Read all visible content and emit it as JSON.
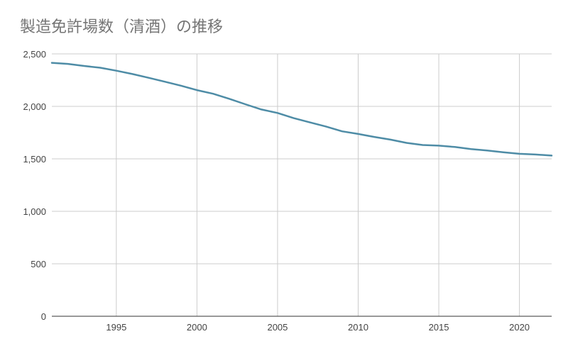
{
  "chart_data": {
    "type": "line",
    "title": "製造免許場数（清酒）の推移",
    "xlabel": "",
    "ylabel": "",
    "xlim": [
      1991,
      2022
    ],
    "ylim": [
      0,
      2500
    ],
    "x_ticks": [
      "1995",
      "2000",
      "2005",
      "2010",
      "2015",
      "2020"
    ],
    "y_ticks": [
      "0",
      "500",
      "1,000",
      "1,500",
      "2,000",
      "2,500"
    ],
    "grid": true,
    "legend": "none",
    "line_color": "#4e8ca6",
    "series": [
      {
        "x": [
          1991,
          1992,
          1993,
          1994,
          1995,
          1996,
          1997,
          1998,
          1999,
          2000,
          2001,
          2002,
          2003,
          2004,
          2005,
          2006,
          2007,
          2008,
          2009,
          2010,
          2011,
          2012,
          2013,
          2014,
          2015,
          2016,
          2017,
          2018,
          2019,
          2020,
          2021,
          2022
        ],
        "values": [
          2415,
          2405,
          2385,
          2368,
          2340,
          2308,
          2272,
          2235,
          2197,
          2155,
          2120,
          2072,
          2020,
          1970,
          1937,
          1888,
          1847,
          1808,
          1762,
          1737,
          1709,
          1683,
          1652,
          1632,
          1626,
          1613,
          1593,
          1580,
          1563,
          1548,
          1541,
          1531
        ]
      }
    ]
  }
}
